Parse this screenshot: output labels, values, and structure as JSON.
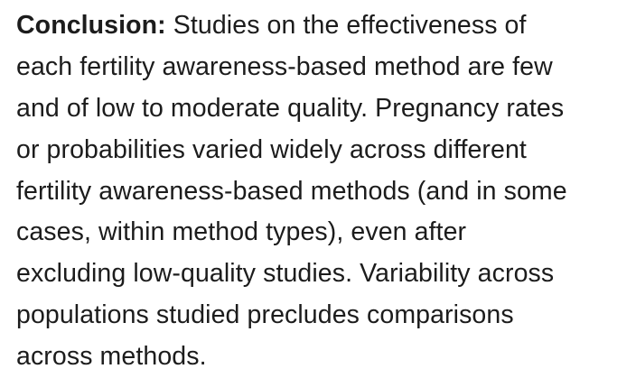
{
  "paragraph": {
    "heading": "Conclusion:",
    "lines": [
      " Studies on the effectiveness of",
      "each fertility awareness-based method are few",
      "and of low to moderate quality. Pregnancy rates",
      "or probabilities varied widely across different",
      "fertility awareness-based methods (and in some",
      "cases, within method types), even after",
      "excluding low-quality studies. Variability across",
      "populations studied precludes comparisons",
      "across methods."
    ]
  }
}
